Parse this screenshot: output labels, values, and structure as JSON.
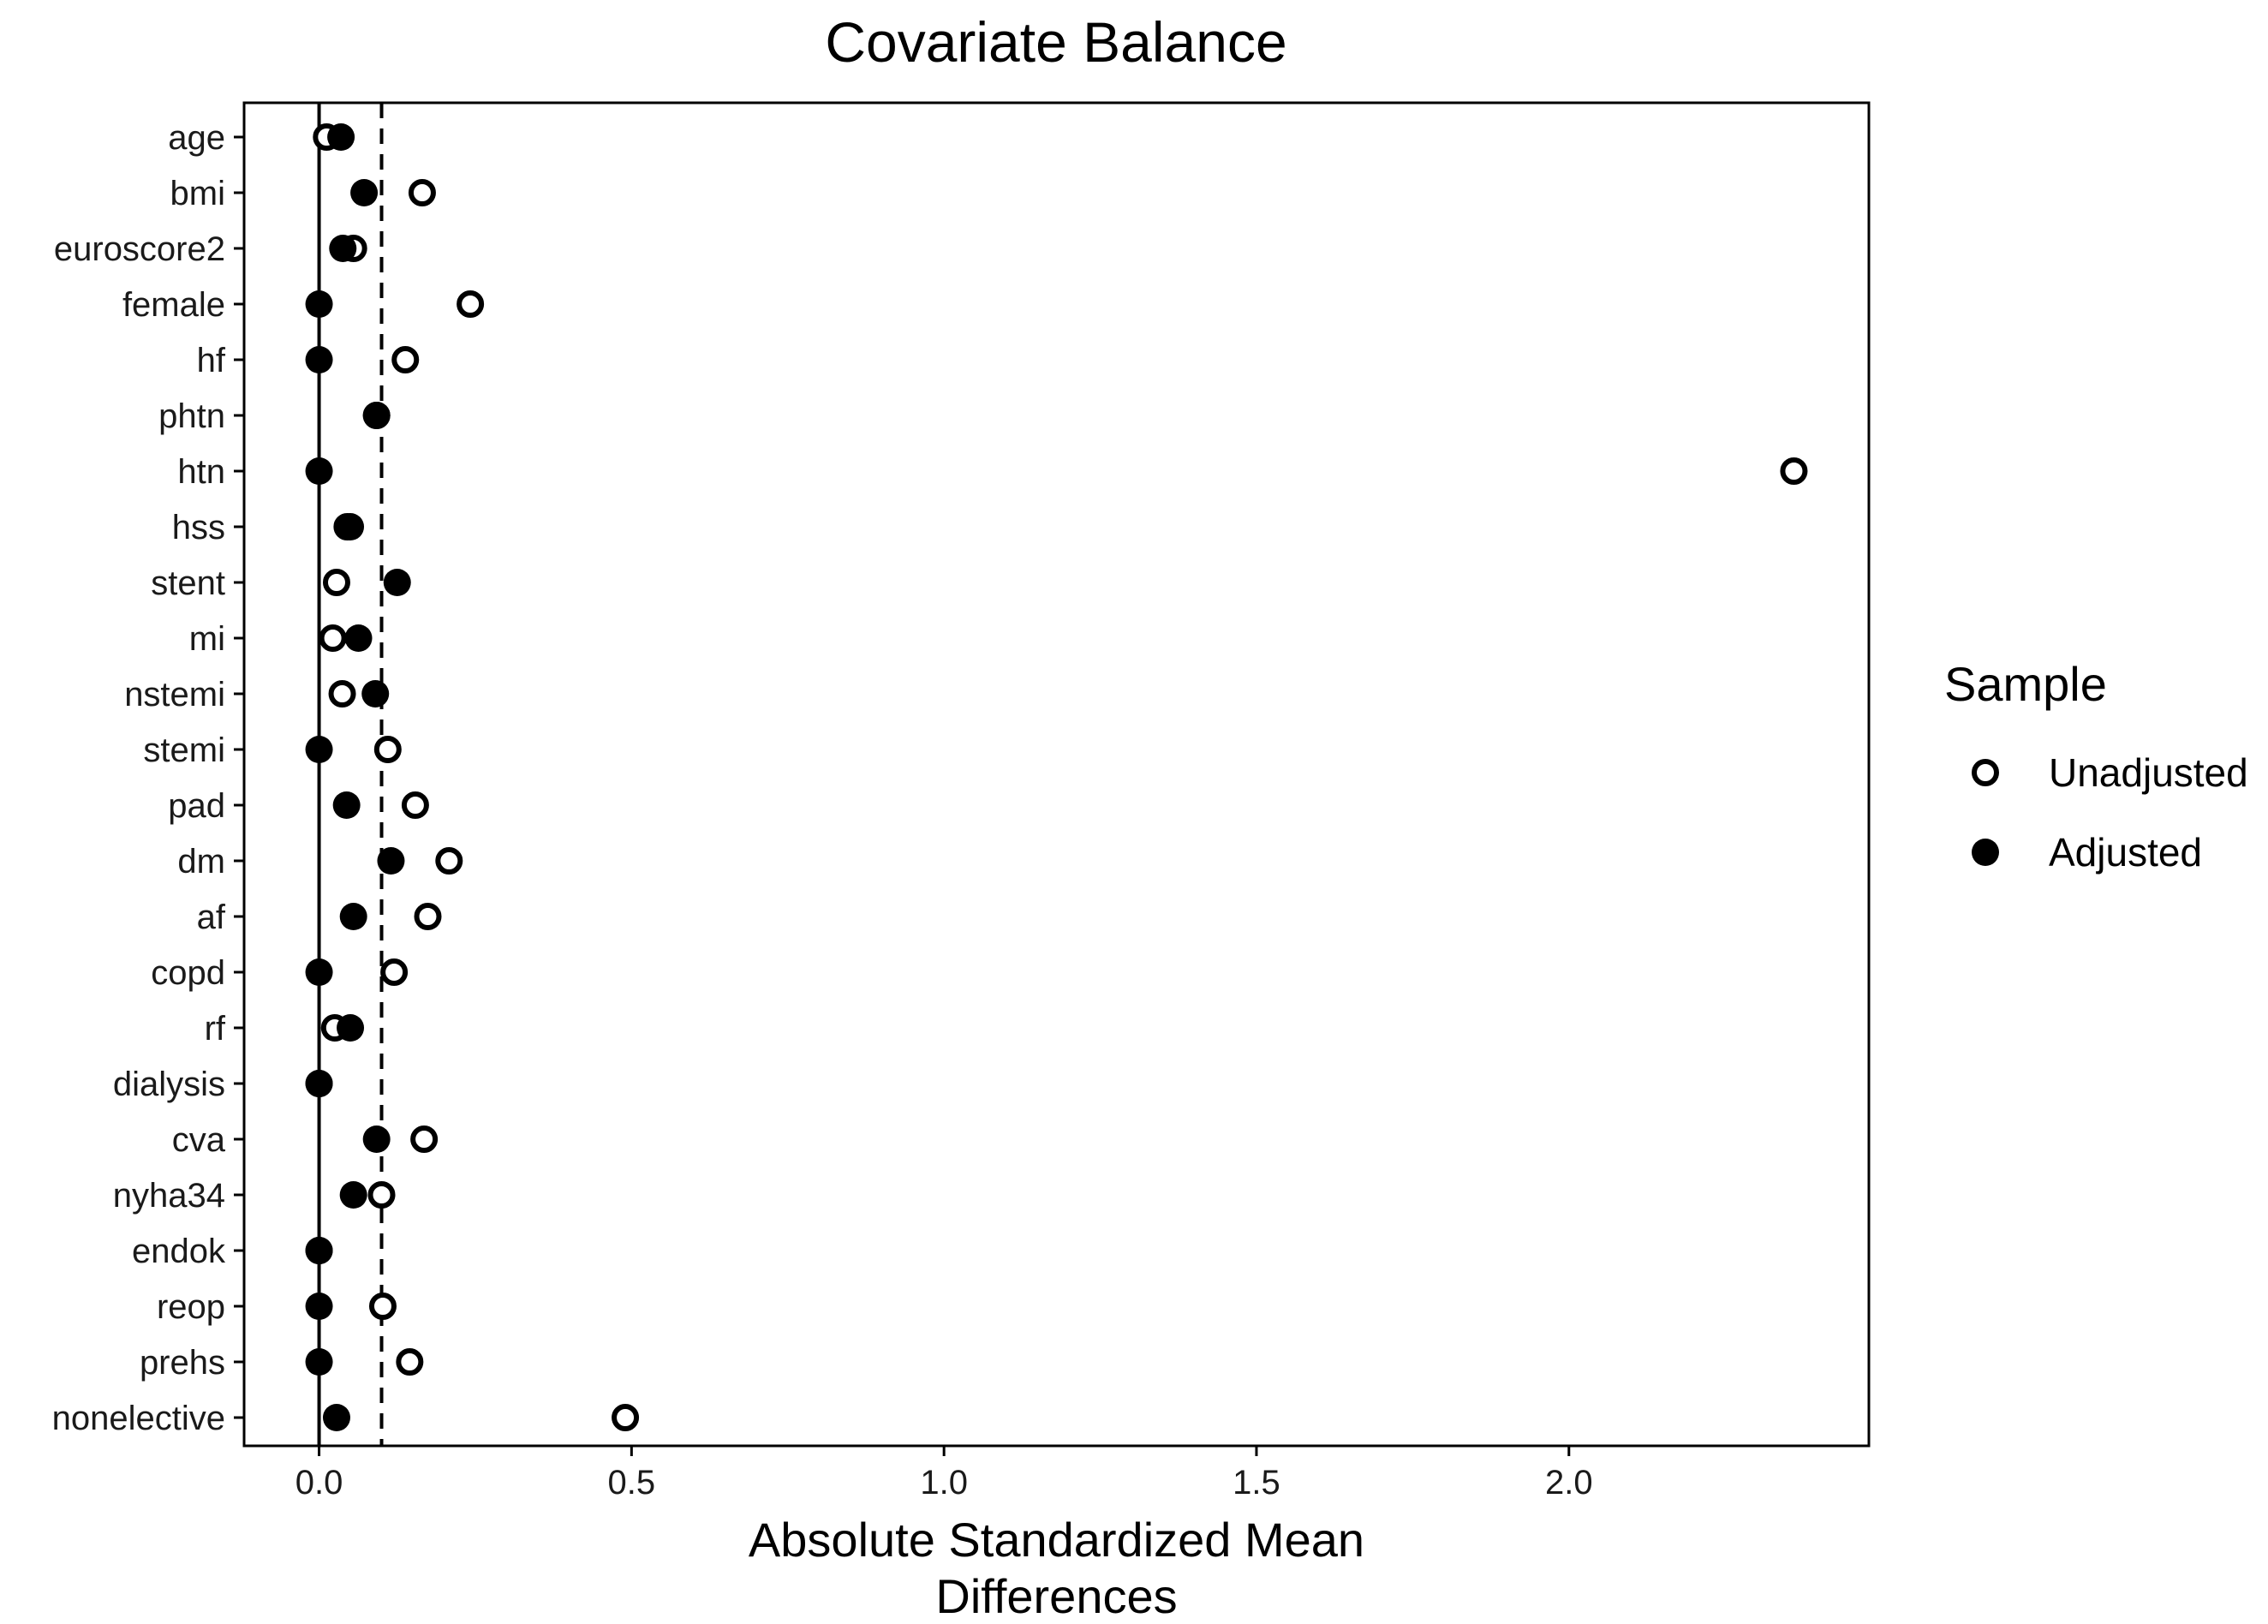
{
  "chart_data": {
    "type": "scatter",
    "title": "Covariate Balance",
    "xlabel": [
      "Absolute Standardized Mean",
      "Differences"
    ],
    "ylabel": "",
    "xlim": [
      -0.12,
      2.48
    ],
    "xticks": [
      0.0,
      0.5,
      1.0,
      1.5,
      2.0
    ],
    "xtick_labels": [
      "0.0",
      "0.5",
      "1.0",
      "1.5",
      "2.0"
    ],
    "reference_lines": {
      "solid": 0.0,
      "dashed": 0.1
    },
    "grid": false,
    "legend_position": "right",
    "legend_title": "Sample",
    "categories": [
      "age",
      "bmi",
      "euroscore2",
      "female",
      "hf",
      "phtn",
      "htn",
      "hss",
      "stent",
      "mi",
      "nstemi",
      "stemi",
      "pad",
      "dm",
      "af",
      "copd",
      "rf",
      "dialysis",
      "cva",
      "nyha34",
      "endok",
      "reop",
      "prehs",
      "nonelective"
    ],
    "series": [
      {
        "name": "Unadjusted",
        "marker": "open-circle",
        "values": [
          0.012,
          0.165,
          0.055,
          0.242,
          0.138,
          0.092,
          2.36,
          0.045,
          0.028,
          0.022,
          0.037,
          0.11,
          0.154,
          0.208,
          0.174,
          0.12,
          0.025,
          0.0,
          0.168,
          0.1,
          0.0,
          0.102,
          0.145,
          0.49
        ]
      },
      {
        "name": "Adjusted",
        "marker": "filled-circle",
        "values": [
          0.035,
          0.072,
          0.038,
          0.0,
          0.0,
          0.092,
          0.0,
          0.05,
          0.125,
          0.063,
          0.09,
          0.0,
          0.044,
          0.115,
          0.055,
          0.0,
          0.05,
          0.0,
          0.092,
          0.055,
          0.0,
          0.0,
          0.0,
          0.028
        ]
      }
    ]
  },
  "colors": {
    "axis": "#000000",
    "text": "#1a1a1a",
    "marker": "#000000",
    "background": "#ffffff"
  }
}
